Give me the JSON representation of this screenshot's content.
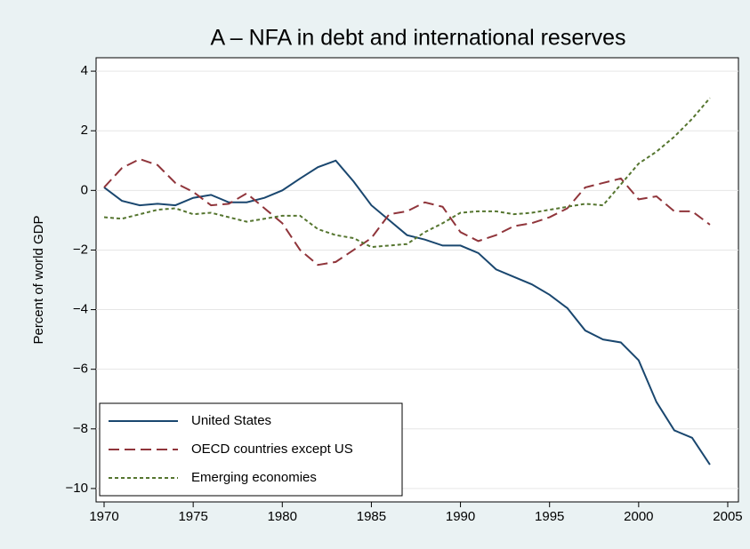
{
  "chart_data": {
    "type": "line",
    "title": "A – NFA in debt and international reserves",
    "ylabel": "Percent of world GDP",
    "x": [
      1970,
      1971,
      1972,
      1973,
      1974,
      1975,
      1976,
      1977,
      1978,
      1979,
      1980,
      1981,
      1982,
      1983,
      1984,
      1985,
      1986,
      1987,
      1988,
      1989,
      1990,
      1991,
      1992,
      1993,
      1994,
      1995,
      1996,
      1997,
      1998,
      1999,
      2000,
      2001,
      2002,
      2003,
      2004
    ],
    "series": [
      {
        "name": "United States",
        "color": "#1a476f",
        "style": "solid",
        "values": [
          0.1,
          -0.35,
          -0.5,
          -0.45,
          -0.5,
          -0.25,
          -0.15,
          -0.4,
          -0.4,
          -0.25,
          0,
          0.4,
          0.78,
          1.0,
          0.3,
          -0.5,
          -1.0,
          -1.5,
          -1.65,
          -1.85,
          -1.85,
          -2.1,
          -2.65,
          -2.9,
          -3.15,
          -3.5,
          -3.95,
          -4.7,
          -5.0,
          -5.1,
          -5.7,
          -7.1,
          -8.05,
          -8.3,
          -9.2
        ]
      },
      {
        "name": "OECD countries except US",
        "color": "#90353b",
        "style": "dash",
        "values": [
          0.1,
          0.75,
          1.05,
          0.85,
          0.25,
          -0.05,
          -0.5,
          -0.45,
          -0.1,
          -0.6,
          -1.1,
          -2.0,
          -2.5,
          -2.4,
          -2.0,
          -1.6,
          -0.8,
          -0.7,
          -0.4,
          -0.55,
          -1.4,
          -1.7,
          -1.5,
          -1.2,
          -1.1,
          -0.9,
          -0.6,
          0.1,
          0.25,
          0.4,
          -0.3,
          -0.2,
          -0.7,
          -0.7,
          -1.15
        ]
      },
      {
        "name": "Emerging economies",
        "color": "#55752f",
        "style": "dot",
        "values": [
          -0.9,
          -0.95,
          -0.8,
          -0.65,
          -0.6,
          -0.8,
          -0.75,
          -0.9,
          -1.05,
          -0.95,
          -0.85,
          -0.85,
          -1.3,
          -1.5,
          -1.6,
          -1.9,
          -1.85,
          -1.8,
          -1.4,
          -1.1,
          -0.75,
          -0.7,
          -0.7,
          -0.8,
          -0.75,
          -0.65,
          -0.55,
          -0.45,
          -0.5,
          0.2,
          0.9,
          1.3,
          1.8,
          2.4,
          3.1
        ]
      }
    ],
    "xlim": [
      1969.55,
      2005.6
    ],
    "xticks": [
      1970,
      1975,
      1980,
      1985,
      1990,
      1995,
      2000,
      2005
    ],
    "ylim": [
      -10.45,
      4.45
    ],
    "yticks": [
      {
        "value": -10,
        "label": "−10"
      },
      {
        "value": -8,
        "label": "−8"
      },
      {
        "value": -6,
        "label": "−6"
      },
      {
        "value": -4,
        "label": "−4"
      },
      {
        "value": -2,
        "label": "−2"
      },
      0,
      2,
      4
    ],
    "grid": true,
    "legend": "lower left"
  }
}
